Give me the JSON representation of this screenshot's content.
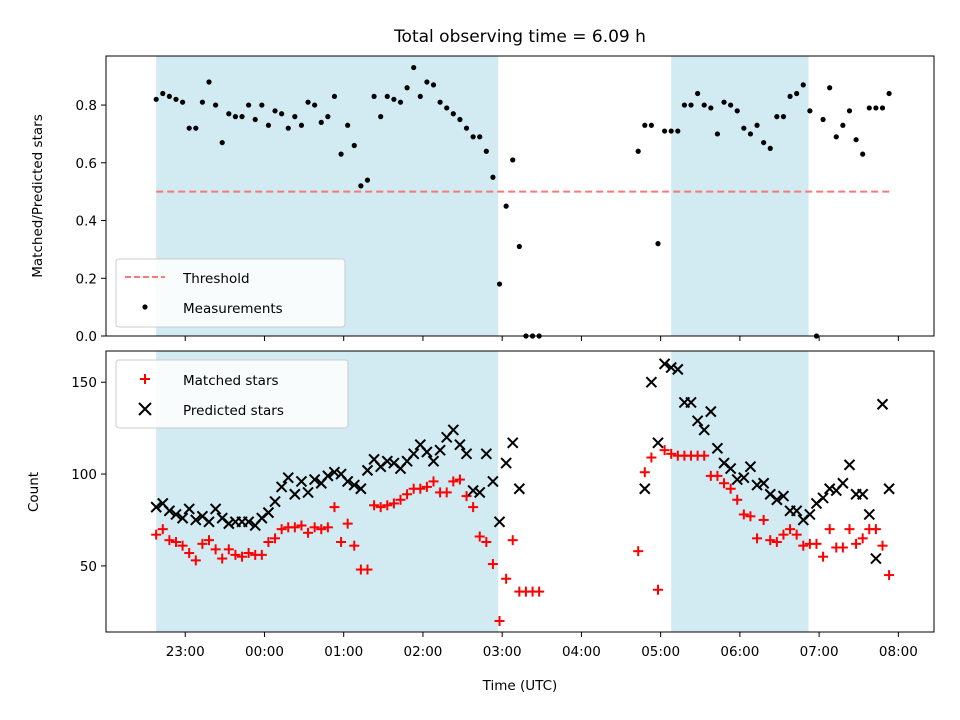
{
  "title": "Total observing time = 6.09 h",
  "colors": {
    "measurements": "#000000",
    "threshold": "#f47a7a",
    "matched": "#ff0000",
    "predicted": "#000000",
    "shade": "#add8e6"
  },
  "chart_data": [
    {
      "type": "scatter",
      "panel": "top",
      "title": "Total observing time = 6.09 h",
      "xlabel": "",
      "ylabel": "Matched/Predicted stars",
      "x_unit": "UTC time in hours (after 24 = next day)",
      "xlim": [
        22.0,
        8.45
      ],
      "ylim": [
        0.0,
        0.97
      ],
      "yticks": [
        0.0,
        0.2,
        0.4,
        0.6,
        0.8
      ],
      "ytick_labels": [
        "0.0",
        "0.2",
        "0.4",
        "0.6",
        "0.8"
      ],
      "shaded_ranges": [
        [
          "22:38",
          "02:57"
        ],
        [
          "05:08",
          "06:52"
        ]
      ],
      "legend": {
        "position": "lower-left",
        "entries": [
          "Threshold",
          "Measurements"
        ]
      },
      "series": [
        {
          "name": "Threshold",
          "style": "dashed-line",
          "x": [
            "22:38",
            "07:54"
          ],
          "y": [
            0.5,
            0.5
          ]
        },
        {
          "name": "Measurements",
          "style": "dot",
          "x": [
            "22:38",
            "22:43",
            "22:48",
            "22:53",
            "22:58",
            "23:03",
            "23:08",
            "23:13",
            "23:18",
            "23:23",
            "23:28",
            "23:33",
            "23:38",
            "23:43",
            "23:48",
            "23:53",
            "23:58",
            "00:03",
            "00:08",
            "00:13",
            "00:18",
            "00:23",
            "00:28",
            "00:33",
            "00:38",
            "00:43",
            "00:48",
            "00:53",
            "00:58",
            "01:03",
            "01:08",
            "01:13",
            "01:18",
            "01:23",
            "01:28",
            "01:33",
            "01:38",
            "01:43",
            "01:48",
            "01:53",
            "01:58",
            "02:03",
            "02:08",
            "02:13",
            "02:18",
            "02:23",
            "02:28",
            "02:33",
            "02:38",
            "02:43",
            "02:48",
            "02:53",
            "02:58",
            "03:03",
            "03:08",
            "03:13",
            "03:18",
            "03:23",
            "03:28",
            "04:43",
            "04:48",
            "04:53",
            "04:58",
            "05:03",
            "05:08",
            "05:13",
            "05:18",
            "05:23",
            "05:28",
            "05:33",
            "05:38",
            "05:43",
            "05:48",
            "05:53",
            "05:58",
            "06:03",
            "06:08",
            "06:13",
            "06:18",
            "06:23",
            "06:28",
            "06:33",
            "06:38",
            "06:43",
            "06:48",
            "06:53",
            "06:58",
            "07:03",
            "07:08",
            "07:13",
            "07:18",
            "07:23",
            "07:28",
            "07:33",
            "07:38",
            "07:43",
            "07:48",
            "07:53"
          ],
          "y": [
            0.82,
            0.84,
            0.83,
            0.82,
            0.81,
            0.72,
            0.72,
            0.81,
            0.88,
            0.8,
            0.67,
            0.77,
            0.76,
            0.76,
            0.8,
            0.75,
            0.8,
            0.73,
            0.78,
            0.77,
            0.72,
            0.76,
            0.73,
            0.81,
            0.8,
            0.74,
            0.76,
            0.83,
            0.63,
            0.73,
            0.66,
            0.52,
            0.54,
            0.83,
            0.76,
            0.83,
            0.82,
            0.81,
            0.86,
            0.93,
            0.83,
            0.88,
            0.87,
            0.81,
            0.79,
            0.77,
            0.75,
            0.72,
            0.69,
            0.69,
            0.64,
            0.55,
            0.18,
            0.45,
            0.61,
            0.31,
            0.0,
            0.0,
            0.0,
            0.64,
            0.73,
            0.73,
            0.32,
            0.71,
            0.71,
            0.71,
            0.8,
            0.8,
            0.84,
            0.8,
            0.79,
            0.7,
            0.81,
            0.8,
            0.78,
            0.72,
            0.7,
            0.73,
            0.67,
            0.65,
            0.76,
            0.76,
            0.83,
            0.84,
            0.87,
            0.78,
            0.0,
            0.75,
            0.86,
            0.69,
            0.73,
            0.78,
            0.68,
            0.63,
            0.79,
            0.79,
            0.79,
            0.84
          ]
        }
      ]
    },
    {
      "type": "scatter",
      "panel": "bottom",
      "xlabel": "Time (UTC)",
      "ylabel": "Count",
      "x_unit": "UTC time in hours (after 24 = next day)",
      "xlim": [
        22.0,
        8.45
      ],
      "ylim": [
        14,
        167
      ],
      "xticks": [
        "23:00",
        "00:00",
        "01:00",
        "02:00",
        "03:00",
        "04:00",
        "05:00",
        "06:00",
        "07:00",
        "08:00"
      ],
      "yticks": [
        50,
        100,
        150
      ],
      "ytick_labels": [
        "50",
        "100",
        "150"
      ],
      "shaded_ranges": [
        [
          "22:38",
          "02:57"
        ],
        [
          "05:08",
          "06:52"
        ]
      ],
      "legend": {
        "position": "upper-left",
        "entries": [
          "Matched stars",
          "Predicted stars"
        ]
      },
      "series": [
        {
          "name": "Matched stars",
          "marker": "plus",
          "x": [
            "22:38",
            "22:43",
            "22:48",
            "22:53",
            "22:58",
            "23:03",
            "23:08",
            "23:13",
            "23:18",
            "23:23",
            "23:28",
            "23:33",
            "23:38",
            "23:43",
            "23:48",
            "23:53",
            "23:58",
            "00:03",
            "00:08",
            "00:13",
            "00:18",
            "00:23",
            "00:28",
            "00:33",
            "00:38",
            "00:43",
            "00:48",
            "00:53",
            "00:58",
            "01:03",
            "01:08",
            "01:13",
            "01:18",
            "01:23",
            "01:28",
            "01:33",
            "01:38",
            "01:43",
            "01:48",
            "01:53",
            "01:58",
            "02:03",
            "02:08",
            "02:13",
            "02:18",
            "02:23",
            "02:28",
            "02:33",
            "02:38",
            "02:43",
            "02:48",
            "02:53",
            "02:58",
            "03:03",
            "03:08",
            "03:13",
            "03:18",
            "03:23",
            "03:28",
            "04:43",
            "04:48",
            "04:53",
            "04:58",
            "05:03",
            "05:08",
            "05:13",
            "05:18",
            "05:23",
            "05:28",
            "05:33",
            "05:38",
            "05:43",
            "05:48",
            "05:53",
            "05:58",
            "06:03",
            "06:08",
            "06:13",
            "06:18",
            "06:23",
            "06:28",
            "06:33",
            "06:38",
            "06:43",
            "06:48",
            "06:53",
            "06:58",
            "07:03",
            "07:08",
            "07:13",
            "07:18",
            "07:23",
            "07:28",
            "07:33",
            "07:38",
            "07:43",
            "07:48",
            "07:53"
          ],
          "y": [
            67,
            70,
            64,
            63,
            61,
            57,
            53,
            62,
            64,
            59,
            54,
            59,
            56,
            55,
            57,
            56,
            56,
            63,
            65,
            70,
            71,
            71,
            72,
            68,
            71,
            70,
            71,
            82,
            63,
            73,
            61,
            48,
            48,
            83,
            82,
            83,
            84,
            86,
            89,
            92,
            92,
            93,
            96,
            90,
            90,
            96,
            97,
            88,
            82,
            66,
            63,
            51,
            20,
            43,
            64,
            36,
            36,
            36,
            36,
            58,
            101,
            109,
            37,
            113,
            111,
            110,
            110,
            110,
            110,
            110,
            99,
            99,
            95,
            92,
            86,
            78,
            77,
            65,
            75,
            64,
            63,
            67,
            70,
            67,
            61,
            62,
            62,
            55,
            70,
            60,
            60,
            70,
            62,
            65,
            70,
            70,
            61,
            45
          ]
        },
        {
          "name": "Predicted stars",
          "marker": "cross",
          "x": [
            "22:38",
            "22:43",
            "22:48",
            "22:53",
            "22:58",
            "23:03",
            "23:08",
            "23:13",
            "23:18",
            "23:23",
            "23:28",
            "23:33",
            "23:38",
            "23:43",
            "23:48",
            "23:53",
            "23:58",
            "00:03",
            "00:08",
            "00:13",
            "00:18",
            "00:23",
            "00:28",
            "00:33",
            "00:38",
            "00:43",
            "00:48",
            "00:53",
            "00:58",
            "01:03",
            "01:08",
            "01:13",
            "01:18",
            "01:23",
            "01:28",
            "01:33",
            "01:38",
            "01:43",
            "01:48",
            "01:53",
            "01:58",
            "02:03",
            "02:08",
            "02:13",
            "02:18",
            "02:23",
            "02:28",
            "02:33",
            "02:38",
            "02:43",
            "02:48",
            "02:53",
            "02:58",
            "03:03",
            "03:08",
            "03:13",
            "04:53",
            "04:58",
            "05:03",
            "05:08",
            "05:13",
            "05:18",
            "05:23",
            "05:28",
            "05:33",
            "05:38",
            "05:43",
            "05:48",
            "05:53",
            "05:58",
            "06:03",
            "06:08",
            "06:13",
            "06:18",
            "06:23",
            "06:28",
            "06:33",
            "06:38",
            "06:43",
            "06:48",
            "06:53",
            "06:58",
            "07:03",
            "07:08",
            "07:13",
            "07:18",
            "07:23",
            "07:28",
            "07:33",
            "07:38",
            "07:43",
            "07:48",
            "07:53",
            "04:48"
          ],
          "y": [
            82,
            84,
            80,
            78,
            76,
            81,
            75,
            77,
            74,
            81,
            76,
            73,
            74,
            74,
            74,
            72,
            76,
            79,
            85,
            93,
            98,
            89,
            96,
            90,
            97,
            95,
            99,
            101,
            100,
            96,
            94,
            92,
            102,
            108,
            104,
            107,
            106,
            103,
            107,
            111,
            116,
            112,
            107,
            113,
            120,
            124,
            116,
            111,
            91,
            90,
            111,
            96,
            74,
            106,
            117,
            92,
            150,
            117,
            160,
            158,
            157,
            139,
            139,
            129,
            124,
            134,
            114,
            106,
            103,
            97,
            98,
            104,
            94,
            95,
            89,
            86,
            88,
            80,
            80,
            75,
            78,
            84,
            87,
            92,
            91,
            95,
            105,
            89,
            89,
            78,
            54,
            138,
            92,
            92
          ]
        }
      ]
    }
  ]
}
